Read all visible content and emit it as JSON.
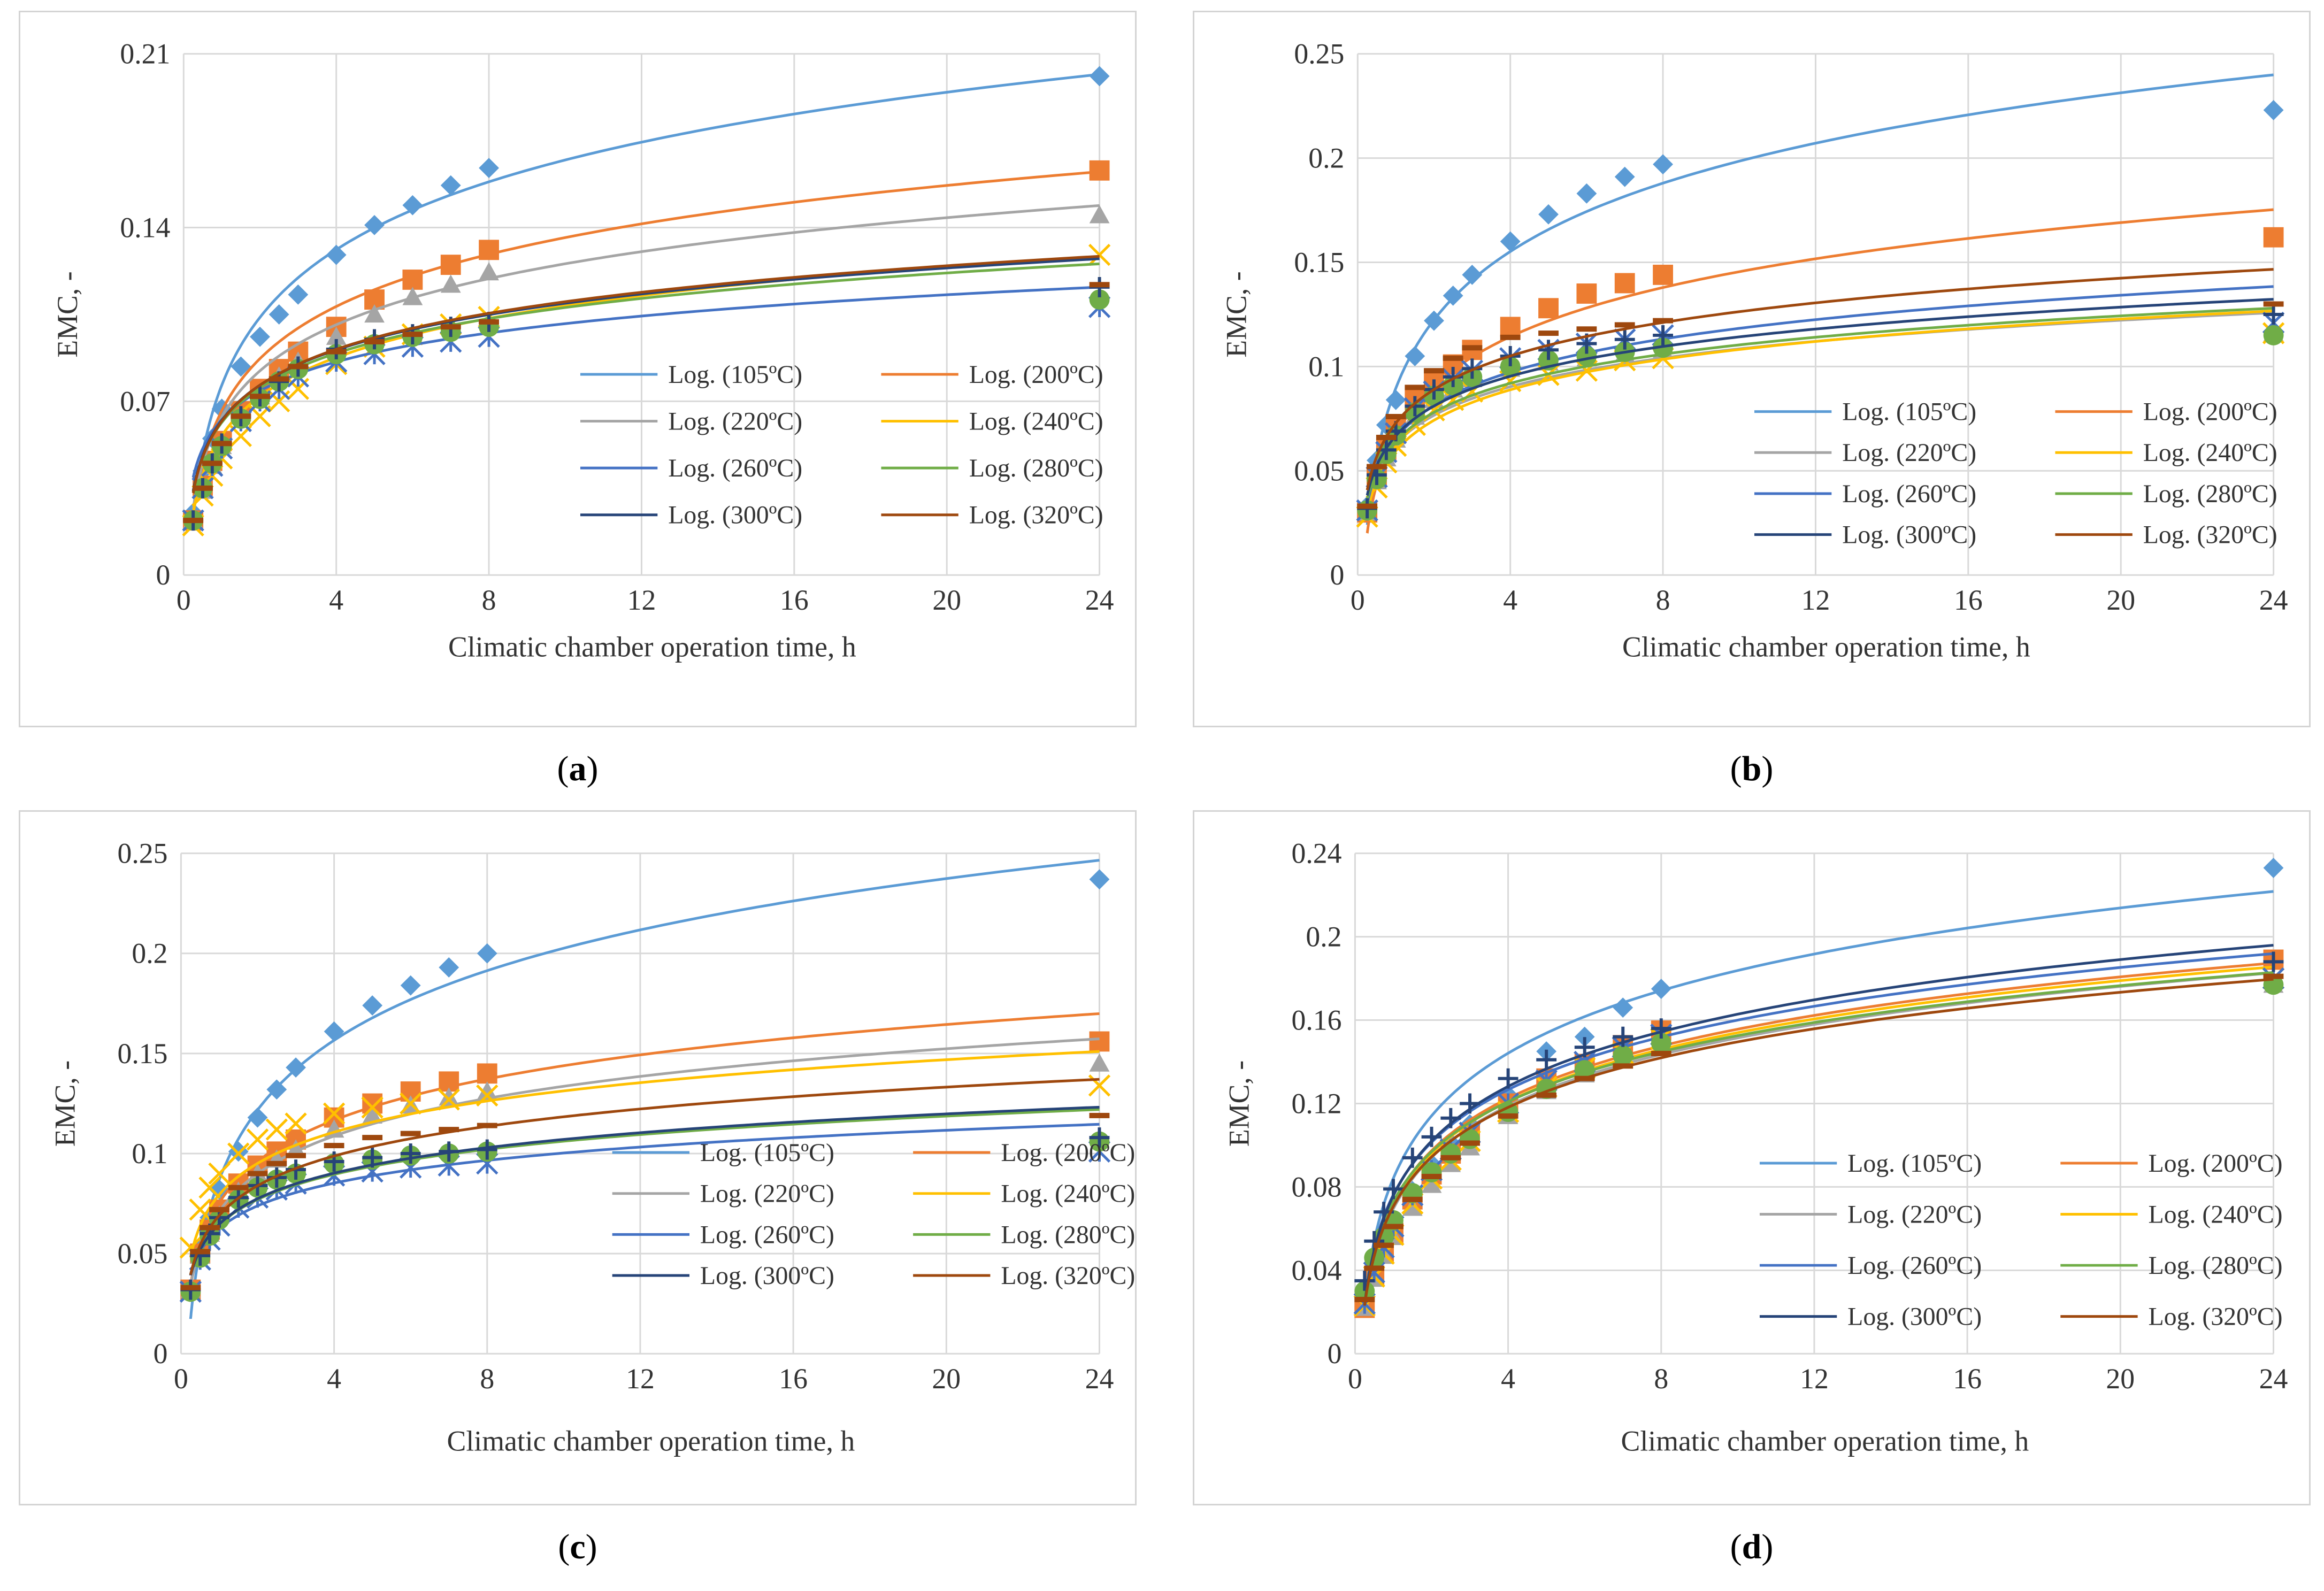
{
  "series_colors": {
    "105": "#5b9bd5",
    "200": "#ed7d31",
    "220": "#a5a5a5",
    "240": "#ffc000",
    "260": "#4472c4",
    "280": "#70ad47",
    "300": "#264478",
    "320": "#9e480e"
  },
  "chart_data": [
    {
      "type": "scatter",
      "panel_label": "a",
      "xlabel": "Climatic chamber operation time, h",
      "ylabel": "EMC, -",
      "xlim": [
        0,
        24
      ],
      "ylim": [
        0,
        0.21
      ],
      "xticks": [
        0,
        4,
        8,
        12,
        16,
        20,
        24
      ],
      "yticks": [
        0,
        0.07,
        0.14,
        0.21
      ],
      "ytick_labels": [
        "0",
        "0.07",
        "0.14",
        "0.21"
      ],
      "x": [
        0.25,
        0.5,
        0.75,
        1,
        1.5,
        2,
        2.5,
        3,
        4,
        5,
        6,
        7,
        8,
        24
      ],
      "series": [
        {
          "name": "Log. (105ºC)",
          "key": "105",
          "marker": "diamond",
          "values": [
            0.025,
            0.042,
            0.055,
            0.067,
            0.084,
            0.096,
            0.105,
            0.113,
            0.129,
            0.141,
            0.149,
            0.157,
            0.164,
            0.201
          ],
          "fit": [
            0.0765,
            0.0394
          ]
        },
        {
          "name": "Log. (200ºC)",
          "key": "200",
          "marker": "square",
          "values": [
            0.022,
            0.036,
            0.046,
            0.054,
            0.066,
            0.075,
            0.083,
            0.09,
            0.1,
            0.111,
            0.119,
            0.125,
            0.131,
            0.163
          ],
          "fit": [
            0.0662,
            0.0303
          ]
        },
        {
          "name": "Log. (220ºC)",
          "key": "220",
          "marker": "triangle",
          "values": [
            0.022,
            0.034,
            0.044,
            0.052,
            0.064,
            0.072,
            0.08,
            0.086,
            0.096,
            0.105,
            0.112,
            0.117,
            0.122,
            0.145
          ],
          "fit": [
            0.0637,
            0.0268
          ]
        },
        {
          "name": "Log. (240ºC)",
          "key": "240",
          "marker": "x",
          "values": [
            0.02,
            0.032,
            0.04,
            0.047,
            0.056,
            0.064,
            0.07,
            0.075,
            0.085,
            0.092,
            0.097,
            0.101,
            0.104,
            0.129
          ],
          "fit": [
            0.0562,
            0.0227
          ]
        },
        {
          "name": "Log. (260ºC)",
          "key": "260",
          "marker": "star",
          "values": [
            0.022,
            0.035,
            0.044,
            0.051,
            0.062,
            0.07,
            0.075,
            0.08,
            0.086,
            0.089,
            0.092,
            0.094,
            0.096,
            0.108
          ],
          "fit": [
            0.0626,
            0.0168
          ]
        },
        {
          "name": "Log. (280ºC)",
          "key": "280",
          "marker": "circle",
          "values": [
            0.022,
            0.035,
            0.045,
            0.052,
            0.063,
            0.071,
            0.078,
            0.083,
            0.089,
            0.093,
            0.096,
            0.098,
            0.1,
            0.111
          ],
          "fit": [
            0.0615,
            0.0201
          ]
        },
        {
          "name": "Log. (300ºC)",
          "key": "300",
          "marker": "plus",
          "values": [
            0.022,
            0.035,
            0.045,
            0.053,
            0.064,
            0.072,
            0.078,
            0.084,
            0.091,
            0.095,
            0.097,
            0.1,
            0.102,
            0.116
          ],
          "fit": [
            0.0623,
            0.0205
          ]
        },
        {
          "name": "Log. (320ºC)",
          "key": "320",
          "marker": "dash",
          "values": [
            0.022,
            0.035,
            0.045,
            0.053,
            0.064,
            0.072,
            0.079,
            0.084,
            0.09,
            0.094,
            0.097,
            0.1,
            0.102,
            0.117
          ],
          "fit": [
            0.062,
            0.0209
          ]
        }
      ]
    },
    {
      "type": "scatter",
      "panel_label": "b",
      "xlabel": "Climatic chamber operation time, h",
      "ylabel": "EMC, -",
      "xlim": [
        0,
        24
      ],
      "ylim": [
        0,
        0.25
      ],
      "xticks": [
        0,
        4,
        8,
        12,
        16,
        20,
        24
      ],
      "yticks": [
        0,
        0.05,
        0.1,
        0.15,
        0.2,
        0.25
      ],
      "ytick_labels": [
        "0",
        "0.05",
        "0.1",
        "0.15",
        "0.2",
        "0.25"
      ],
      "x": [
        0.25,
        0.5,
        0.75,
        1,
        1.5,
        2,
        2.5,
        3,
        4,
        5,
        6,
        7,
        8,
        24
      ],
      "series": [
        {
          "name": "Log. (105ºC)",
          "key": "105",
          "marker": "diamond",
          "values": [
            0.033,
            0.055,
            0.072,
            0.084,
            0.105,
            0.122,
            0.134,
            0.144,
            0.16,
            0.173,
            0.183,
            0.191,
            0.197,
            0.223
          ],
          "fit": [
            0.0896,
            0.0473
          ]
        },
        {
          "name": "Log. (200ºC)",
          "key": "200",
          "marker": "square",
          "values": [
            0.03,
            0.047,
            0.06,
            0.07,
            0.084,
            0.094,
            0.101,
            0.108,
            0.119,
            0.128,
            0.135,
            0.14,
            0.144,
            0.162
          ],
          "fit": [
            0.0672,
            0.034
          ]
        },
        {
          "name": "Log. (220ºC)",
          "key": "220",
          "marker": "triangle",
          "values": [
            0.03,
            0.045,
            0.056,
            0.065,
            0.076,
            0.084,
            0.089,
            0.094,
            0.099,
            0.102,
            0.104,
            0.106,
            0.108,
            0.116
          ],
          "fit": [
            0.0629,
            0.0198
          ]
        },
        {
          "name": "Log. (240ºC)",
          "key": "240",
          "marker": "x",
          "values": [
            0.028,
            0.042,
            0.054,
            0.062,
            0.072,
            0.079,
            0.084,
            0.088,
            0.093,
            0.096,
            0.098,
            0.103,
            0.104,
            0.116
          ],
          "fit": [
            0.0596,
            0.0211
          ]
        },
        {
          "name": "Log. (260ºC)",
          "key": "260",
          "marker": "star",
          "values": [
            0.031,
            0.047,
            0.059,
            0.068,
            0.08,
            0.088,
            0.094,
            0.098,
            0.104,
            0.108,
            0.111,
            0.113,
            0.115,
            0.121
          ],
          "fit": [
            0.0656,
            0.0229
          ]
        },
        {
          "name": "Log. (280ºC)",
          "key": "280",
          "marker": "circle",
          "values": [
            0.031,
            0.046,
            0.058,
            0.067,
            0.078,
            0.086,
            0.091,
            0.095,
            0.1,
            0.103,
            0.105,
            0.107,
            0.109,
            0.115
          ],
          "fit": [
            0.0641,
            0.0201
          ]
        },
        {
          "name": "Log. (300ºC)",
          "key": "300",
          "marker": "plus",
          "values": [
            0.032,
            0.048,
            0.06,
            0.069,
            0.081,
            0.089,
            0.095,
            0.099,
            0.105,
            0.108,
            0.111,
            0.113,
            0.115,
            0.125
          ],
          "fit": [
            0.0668,
            0.0206
          ]
        },
        {
          "name": "Log. (320ºC)",
          "key": "320",
          "marker": "dash",
          "values": [
            0.033,
            0.052,
            0.066,
            0.076,
            0.09,
            0.098,
            0.104,
            0.109,
            0.114,
            0.116,
            0.118,
            0.12,
            0.122,
            0.13
          ],
          "fit": [
            0.0729,
            0.0232
          ]
        }
      ]
    },
    {
      "type": "scatter",
      "panel_label": "c",
      "xlabel": "Climatic chamber operation time, h",
      "ylabel": "EMC, -",
      "xlim": [
        0,
        24
      ],
      "ylim": [
        0,
        0.25
      ],
      "xticks": [
        0,
        4,
        8,
        12,
        16,
        20,
        24
      ],
      "yticks": [
        0,
        0.05,
        0.1,
        0.15,
        0.2,
        0.25
      ],
      "ytick_labels": [
        "0",
        "0.05",
        "0.1",
        "0.15",
        "0.2",
        "0.25"
      ],
      "x": [
        0.25,
        0.5,
        0.75,
        1,
        1.5,
        2,
        2.5,
        3,
        4,
        5,
        6,
        7,
        8,
        24
      ],
      "series": [
        {
          "name": "Log. (105ºC)",
          "key": "105",
          "marker": "diamond",
          "values": [
            0.031,
            0.052,
            0.068,
            0.082,
            0.101,
            0.118,
            0.132,
            0.143,
            0.161,
            0.174,
            0.184,
            0.193,
            0.2,
            0.237
          ],
          "fit": [
            0.087,
            0.0502
          ]
        },
        {
          "name": "Log. (200ºC)",
          "key": "200",
          "marker": "square",
          "values": [
            0.032,
            0.05,
            0.062,
            0.072,
            0.085,
            0.094,
            0.101,
            0.107,
            0.118,
            0.125,
            0.131,
            0.136,
            0.14,
            0.156
          ],
          "fit": [
            0.0755,
            0.0297
          ]
        },
        {
          "name": "Log. (220ºC)",
          "key": "220",
          "marker": "triangle",
          "values": [
            0.032,
            0.049,
            0.06,
            0.069,
            0.081,
            0.09,
            0.097,
            0.102,
            0.112,
            0.119,
            0.124,
            0.128,
            0.131,
            0.145
          ],
          "fit": [
            0.0712,
            0.0271
          ]
        },
        {
          "name": "Log. (240ºC)",
          "key": "240",
          "marker": "x",
          "values": [
            0.053,
            0.072,
            0.083,
            0.09,
            0.1,
            0.107,
            0.112,
            0.115,
            0.12,
            0.123,
            0.125,
            0.127,
            0.129,
            0.134
          ],
          "fit": [
            0.0795,
            0.0225
          ]
        },
        {
          "name": "Log. (260ºC)",
          "key": "260",
          "marker": "star",
          "values": [
            0.031,
            0.047,
            0.057,
            0.064,
            0.073,
            0.078,
            0.082,
            0.085,
            0.089,
            0.091,
            0.093,
            0.094,
            0.095,
            0.101
          ],
          "fit": [
            0.0625,
            0.0164
          ]
        },
        {
          "name": "Log. (280ºC)",
          "key": "280",
          "marker": "circle",
          "values": [
            0.031,
            0.048,
            0.059,
            0.067,
            0.077,
            0.083,
            0.087,
            0.09,
            0.095,
            0.097,
            0.099,
            0.1,
            0.101,
            0.106
          ],
          "fit": [
            0.0645,
            0.0181
          ]
        },
        {
          "name": "Log. (300ºC)",
          "key": "300",
          "marker": "plus",
          "values": [
            0.032,
            0.049,
            0.06,
            0.068,
            0.078,
            0.084,
            0.088,
            0.092,
            0.096,
            0.098,
            0.1,
            0.101,
            0.102,
            0.108
          ],
          "fit": [
            0.0647,
            0.0184
          ]
        },
        {
          "name": "Log. (320ºC)",
          "key": "320",
          "marker": "dash",
          "values": [
            0.033,
            0.051,
            0.063,
            0.072,
            0.083,
            0.09,
            0.095,
            0.099,
            0.104,
            0.108,
            0.11,
            0.112,
            0.114,
            0.119
          ],
          "fit": [
            0.0691,
            0.0214
          ]
        }
      ]
    },
    {
      "type": "scatter",
      "panel_label": "d",
      "xlabel": "Climatic chamber operation time, h",
      "ylabel": "EMC, -",
      "xlim": [
        0,
        24
      ],
      "ylim": [
        0,
        0.24
      ],
      "xticks": [
        0,
        4,
        8,
        12,
        16,
        20,
        24
      ],
      "yticks": [
        0,
        0.04,
        0.08,
        0.12,
        0.16,
        0.2,
        0.24
      ],
      "ytick_labels": [
        "0",
        "0.04",
        "0.08",
        "0.12",
        "0.16",
        "0.2",
        "0.24"
      ],
      "x": [
        0.25,
        0.5,
        0.75,
        1,
        1.5,
        2,
        2.5,
        3,
        4,
        5,
        6,
        7,
        8,
        24
      ],
      "series": [
        {
          "name": "Log. (105ºC)",
          "key": "105",
          "marker": "diamond",
          "values": [
            0.024,
            0.04,
            0.052,
            0.062,
            0.078,
            0.091,
            0.101,
            0.11,
            0.124,
            0.145,
            0.152,
            0.166,
            0.175,
            0.233
          ],
          "fit": [
            0.0841,
            0.0433
          ]
        },
        {
          "name": "Log. (200ºC)",
          "key": "200",
          "marker": "square",
          "values": [
            0.022,
            0.037,
            0.049,
            0.058,
            0.074,
            0.086,
            0.096,
            0.105,
            0.12,
            0.132,
            0.139,
            0.148,
            0.155,
            0.189
          ],
          "fit": [
            0.0723,
            0.0362
          ]
        },
        {
          "name": "Log. (220ºC)",
          "key": "220",
          "marker": "triangle",
          "values": [
            0.022,
            0.036,
            0.047,
            0.056,
            0.07,
            0.081,
            0.091,
            0.099,
            0.114,
            0.126,
            0.134,
            0.141,
            0.148,
            0.177
          ],
          "fit": [
            0.0695,
            0.0356
          ]
        },
        {
          "name": "Log. (240ºC)",
          "key": "240",
          "marker": "x",
          "values": [
            0.023,
            0.037,
            0.048,
            0.057,
            0.072,
            0.084,
            0.093,
            0.102,
            0.116,
            0.128,
            0.137,
            0.144,
            0.151,
            0.18
          ],
          "fit": [
            0.0711,
            0.036
          ]
        },
        {
          "name": "Log. (260ºC)",
          "key": "260",
          "marker": "star",
          "values": [
            0.024,
            0.039,
            0.051,
            0.061,
            0.076,
            0.088,
            0.098,
            0.106,
            0.12,
            0.131,
            0.14,
            0.147,
            0.153,
            0.18
          ],
          "fit": [
            0.0762,
            0.0364
          ]
        },
        {
          "name": "Log. (280ºC)",
          "key": "280",
          "marker": "circle",
          "values": [
            0.03,
            0.046,
            0.056,
            0.064,
            0.077,
            0.087,
            0.096,
            0.103,
            0.116,
            0.127,
            0.136,
            0.143,
            0.149,
            0.177
          ],
          "fit": [
            0.0729,
            0.0346
          ]
        },
        {
          "name": "Log. (300ºC)",
          "key": "300",
          "marker": "plus",
          "values": [
            0.035,
            0.054,
            0.068,
            0.079,
            0.094,
            0.104,
            0.113,
            0.12,
            0.132,
            0.141,
            0.147,
            0.152,
            0.156,
            0.188
          ],
          "fit": [
            0.0758,
            0.0378
          ]
        },
        {
          "name": "Log. (320ºC)",
          "key": "320",
          "marker": "dash",
          "values": [
            0.026,
            0.041,
            0.052,
            0.061,
            0.074,
            0.085,
            0.094,
            0.101,
            0.114,
            0.124,
            0.132,
            0.138,
            0.144,
            0.181
          ],
          "fit": [
            0.0706,
            0.0343
          ]
        }
      ]
    }
  ]
}
